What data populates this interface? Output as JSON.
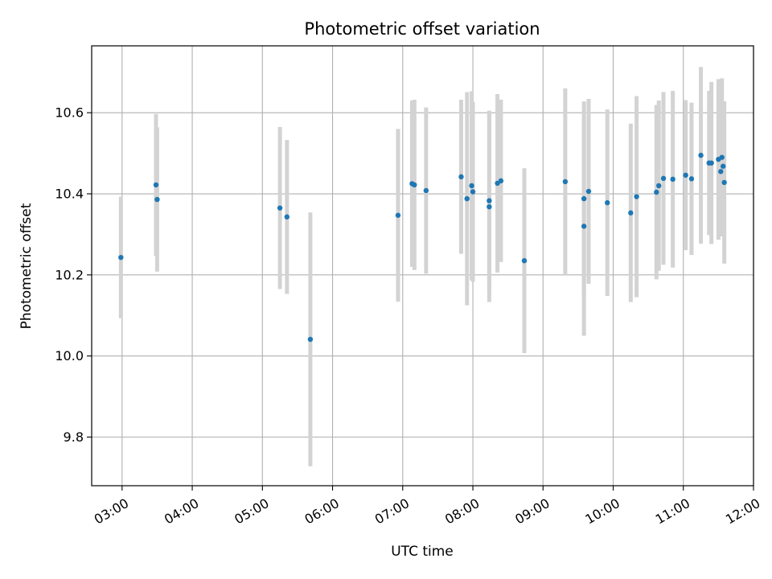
{
  "chart_data": {
    "type": "scatter",
    "title": "Photometric offset variation",
    "xlabel": "UTC time",
    "ylabel": "Photometric offset",
    "xlim": [
      "02:34",
      "12:00"
    ],
    "ylim": [
      9.68,
      10.765
    ],
    "grid": true,
    "x_ticks": [
      "03:00",
      "04:00",
      "05:00",
      "06:00",
      "07:00",
      "08:00",
      "09:00",
      "10:00",
      "11:00",
      "12:00"
    ],
    "y_ticks": [
      9.8,
      10.0,
      10.2,
      10.4,
      10.6
    ],
    "y_tick_labels": [
      "9.8",
      "10.0",
      "10.2",
      "10.4",
      "10.6"
    ],
    "colors": {
      "point": "#1f77b4",
      "errorbar": "#d3d3d3",
      "grid": "#b0b0b0"
    },
    "points": [
      {
        "x": "02:59",
        "y": 10.243,
        "yerr": 0.15
      },
      {
        "x": "03:29",
        "y": 10.422,
        "yerr": 0.175
      },
      {
        "x": "03:30",
        "y": 10.386,
        "yerr": 0.178
      },
      {
        "x": "05:15",
        "y": 10.365,
        "yerr": 0.2
      },
      {
        "x": "05:21",
        "y": 10.343,
        "yerr": 0.19
      },
      {
        "x": "05:41",
        "y": 10.041,
        "yerr": 0.313
      },
      {
        "x": "06:56",
        "y": 10.347,
        "yerr": 0.213
      },
      {
        "x": "07:08",
        "y": 10.425,
        "yerr": 0.205
      },
      {
        "x": "07:10",
        "y": 10.422,
        "yerr": 0.21
      },
      {
        "x": "07:20",
        "y": 10.408,
        "yerr": 0.205
      },
      {
        "x": "07:50",
        "y": 10.442,
        "yerr": 0.19
      },
      {
        "x": "07:55",
        "y": 10.388,
        "yerr": 0.263
      },
      {
        "x": "07:59",
        "y": 10.42,
        "yerr": 0.233
      },
      {
        "x": "08:00",
        "y": 10.405,
        "yerr": 0.222
      },
      {
        "x": "08:14",
        "y": 10.383,
        "yerr": 0.222
      },
      {
        "x": "08:14",
        "y": 10.368,
        "yerr": 0.235
      },
      {
        "x": "08:21",
        "y": 10.426,
        "yerr": 0.22
      },
      {
        "x": "08:24",
        "y": 10.432,
        "yerr": 0.2
      },
      {
        "x": "08:44",
        "y": 10.235,
        "yerr": 0.228
      },
      {
        "x": "09:19",
        "y": 10.43,
        "yerr": 0.23
      },
      {
        "x": "09:35",
        "y": 10.388,
        "yerr": 0.24
      },
      {
        "x": "09:35",
        "y": 10.32,
        "yerr": 0.27
      },
      {
        "x": "09:39",
        "y": 10.406,
        "yerr": 0.228
      },
      {
        "x": "09:55",
        "y": 10.378,
        "yerr": 0.23
      },
      {
        "x": "10:15",
        "y": 10.353,
        "yerr": 0.22
      },
      {
        "x": "10:20",
        "y": 10.393,
        "yerr": 0.248
      },
      {
        "x": "10:37",
        "y": 10.404,
        "yerr": 0.215
      },
      {
        "x": "10:39",
        "y": 10.42,
        "yerr": 0.21
      },
      {
        "x": "10:43",
        "y": 10.438,
        "yerr": 0.213
      },
      {
        "x": "10:51",
        "y": 10.436,
        "yerr": 0.218
      },
      {
        "x": "11:02",
        "y": 10.446,
        "yerr": 0.185
      },
      {
        "x": "11:07",
        "y": 10.437,
        "yerr": 0.188
      },
      {
        "x": "11:15",
        "y": 10.495,
        "yerr": 0.218
      },
      {
        "x": "11:22",
        "y": 10.476,
        "yerr": 0.178
      },
      {
        "x": "11:24",
        "y": 10.476,
        "yerr": 0.2
      },
      {
        "x": "11:30",
        "y": 10.485,
        "yerr": 0.198
      },
      {
        "x": "11:32",
        "y": 10.455,
        "yerr": 0.15
      },
      {
        "x": "11:33",
        "y": 10.49,
        "yerr": 0.195
      },
      {
        "x": "11:34",
        "y": 10.468,
        "yerr": 0.16
      },
      {
        "x": "11:35",
        "y": 10.428,
        "yerr": 0.2
      }
    ]
  }
}
